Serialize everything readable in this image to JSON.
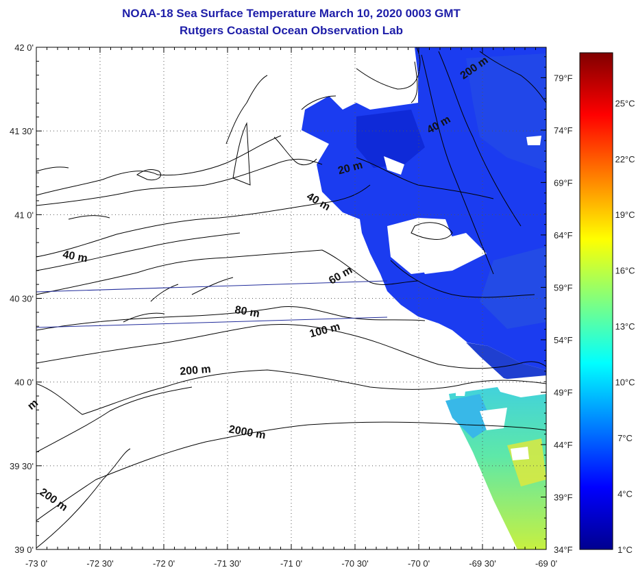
{
  "title": "NOAA-18 Sea Surface Temperature March 10, 2020 0003 GMT",
  "subtitle": "Rutgers Coastal Ocean Observation Lab",
  "map": {
    "lon_range": [
      -73.0,
      -69.0
    ],
    "lat_range": [
      39.0,
      42.0
    ],
    "x_ticks": [
      {
        "value": -73.0,
        "label": "-73 0'"
      },
      {
        "value": -72.5,
        "label": "-72 30'"
      },
      {
        "value": -72.0,
        "label": "-72 0'"
      },
      {
        "value": -71.5,
        "label": "-71 30'"
      },
      {
        "value": -71.0,
        "label": "-71 0'"
      },
      {
        "value": -70.5,
        "label": "-70 30'"
      },
      {
        "value": -70.0,
        "label": "-70 0'"
      },
      {
        "value": -69.5,
        "label": "-69 30'"
      },
      {
        "value": -69.0,
        "label": "-69 0'"
      }
    ],
    "y_ticks": [
      {
        "value": 42.0,
        "label": "42 0'"
      },
      {
        "value": 41.5,
        "label": "41 30'"
      },
      {
        "value": 41.0,
        "label": "41 0'"
      },
      {
        "value": 40.5,
        "label": "40 30'"
      },
      {
        "value": 40.0,
        "label": "40 0'"
      },
      {
        "value": 39.5,
        "label": "39 30'"
      },
      {
        "value": 39.0,
        "label": "39 0'"
      }
    ],
    "fahrenheit_scale": {
      "range": [
        34,
        81.9
      ],
      "ticks": [
        {
          "value": 79,
          "label": "79°F"
        },
        {
          "value": 74,
          "label": "74°F"
        },
        {
          "value": 69,
          "label": "69°F"
        },
        {
          "value": 64,
          "label": "64°F"
        },
        {
          "value": 59,
          "label": "59°F"
        },
        {
          "value": 54,
          "label": "54°F"
        },
        {
          "value": 49,
          "label": "49°F"
        },
        {
          "value": 44,
          "label": "44°F"
        },
        {
          "value": 39,
          "label": "39°F"
        },
        {
          "value": 34,
          "label": "34°F"
        }
      ]
    },
    "depth_labels": [
      {
        "text": "200 m",
        "lon": -69.55,
        "lat": 41.86,
        "angle": 35
      },
      {
        "text": "40 m",
        "lon": -69.83,
        "lat": 41.52,
        "angle": 30
      },
      {
        "text": "20 m",
        "lon": -70.53,
        "lat": 41.26,
        "angle": 15
      },
      {
        "text": "40 m",
        "lon": -70.8,
        "lat": 41.06,
        "angle": -30
      },
      {
        "text": "40 m",
        "lon": -72.7,
        "lat": 40.73,
        "angle": -10
      },
      {
        "text": "60 m",
        "lon": -70.6,
        "lat": 40.62,
        "angle": 30
      },
      {
        "text": "80 m",
        "lon": -71.35,
        "lat": 40.4,
        "angle": -10
      },
      {
        "text": "100 m",
        "lon": -70.73,
        "lat": 40.29,
        "angle": 15
      },
      {
        "text": "200 m",
        "lon": -71.75,
        "lat": 40.05,
        "angle": 5
      },
      {
        "text": "2000 m",
        "lon": -71.35,
        "lat": 39.68,
        "angle": -10
      },
      {
        "text": "200 m",
        "lon": -72.88,
        "lat": 39.28,
        "angle": -35
      },
      {
        "text": "m",
        "lon": -73.01,
        "lat": 39.85,
        "angle": 40
      }
    ],
    "colors": {
      "land_outline": "#000000",
      "track_line": "#1f2a9a",
      "title": "#1d1da8"
    }
  },
  "colorbar": {
    "unit": "°C",
    "range": [
      1,
      27.7
    ],
    "ticks": [
      {
        "value": 1,
        "label": "1°C"
      },
      {
        "value": 4,
        "label": "4°C"
      },
      {
        "value": 7,
        "label": "7°C"
      },
      {
        "value": 10,
        "label": "10°C"
      },
      {
        "value": 13,
        "label": "13°C"
      },
      {
        "value": 16,
        "label": "16°C"
      },
      {
        "value": 19,
        "label": "19°C"
      },
      {
        "value": 22,
        "label": "22°C"
      },
      {
        "value": 25,
        "label": "25°C"
      }
    ],
    "colormap": "jet"
  }
}
